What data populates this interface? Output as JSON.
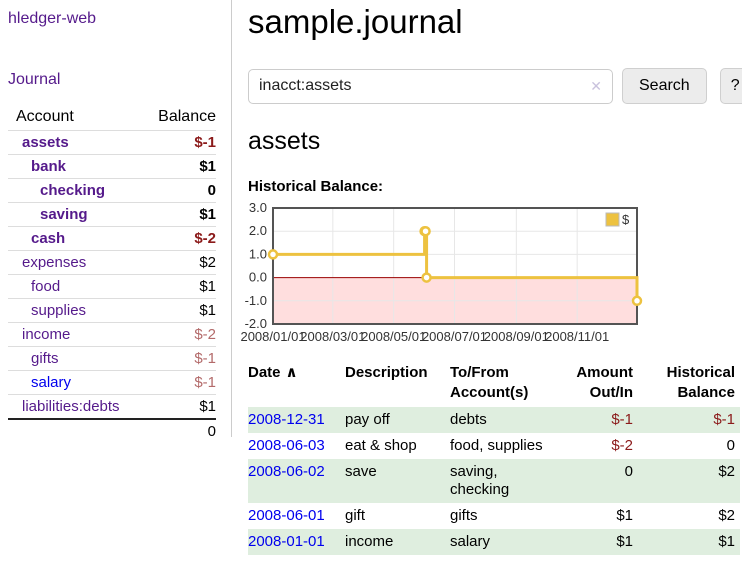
{
  "app": {
    "brand": "hledger-web"
  },
  "colors": {
    "link_purple": "#551a8b",
    "link_blue": "#0000ee",
    "negative_dark": "#8b1a1a",
    "negative_faded": "#b36a6a",
    "row_green": "#dfeedf",
    "series_yellow": "#edc240",
    "chart_negative_fill": "#ffdede",
    "chart_zero_line": "#990000",
    "chart_border": "#545454"
  },
  "sidebar": {
    "journal_label": "Journal",
    "table_headers": {
      "account": "Account",
      "balance": "Balance"
    },
    "accounts": [
      {
        "name": "assets",
        "depth": 1,
        "bold": true,
        "balance": "$-1",
        "balance_style": "neg-dark",
        "balance_bold": true
      },
      {
        "name": "bank",
        "depth": 2,
        "bold": true,
        "balance": "$1",
        "balance_style": "normal",
        "balance_bold": true
      },
      {
        "name": "checking",
        "depth": 3,
        "bold": true,
        "balance": "0",
        "balance_style": "normal",
        "balance_bold": true
      },
      {
        "name": "saving",
        "depth": 3,
        "bold": true,
        "balance": "$1",
        "balance_style": "normal",
        "balance_bold": true
      },
      {
        "name": "cash",
        "depth": 2,
        "bold": true,
        "balance": "$-2",
        "balance_style": "neg-dark",
        "balance_bold": true
      },
      {
        "name": "expenses",
        "depth": 1,
        "bold": false,
        "balance": "$2",
        "balance_style": "normal",
        "balance_bold": false
      },
      {
        "name": "food",
        "depth": 2,
        "bold": false,
        "balance": "$1",
        "balance_style": "normal",
        "balance_bold": false
      },
      {
        "name": "supplies",
        "depth": 2,
        "bold": false,
        "balance": "$1",
        "balance_style": "normal",
        "balance_bold": false
      },
      {
        "name": "income",
        "depth": 1,
        "bold": false,
        "balance": "$-2",
        "balance_style": "neg-faded",
        "balance_bold": false
      },
      {
        "name": "gifts",
        "depth": 2,
        "bold": false,
        "balance": "$-1",
        "balance_style": "neg-faded",
        "balance_bold": false
      },
      {
        "name": "salary",
        "depth": 2,
        "bold": false,
        "balance": "$-1",
        "balance_style": "neg-faded",
        "balance_bold": false,
        "link_style": "blue"
      },
      {
        "name": "liabilities:debts",
        "depth": 1,
        "bold": false,
        "balance": "$1",
        "balance_style": "normal",
        "balance_bold": false
      }
    ],
    "total": "0"
  },
  "main": {
    "title": "sample.journal",
    "search": {
      "value": "inacct:assets",
      "placeholder": "",
      "clear_icon": "✕",
      "button_label": "Search",
      "help_label": "?"
    },
    "account_heading": "assets",
    "chart_title": "Historical Balance:"
  },
  "chart_data": {
    "type": "line",
    "step": true,
    "title": "Historical Balance:",
    "x_range": [
      "2008-01-01",
      "2008-12-31"
    ],
    "ylim": [
      -2,
      3
    ],
    "y_ticks": [
      3,
      2,
      1,
      0,
      -1,
      -2
    ],
    "x_ticks": [
      {
        "date": "2008-01-01",
        "label": "2008/01/01"
      },
      {
        "date": "2008-03-01",
        "label": "2008/03/01"
      },
      {
        "date": "2008-05-01",
        "label": "2008/05/01"
      },
      {
        "date": "2008-07-01",
        "label": "2008/07/01"
      },
      {
        "date": "2008-09-01",
        "label": "2008/09/01"
      },
      {
        "date": "2008-11-01",
        "label": "2008/11/01"
      }
    ],
    "grid": true,
    "negative_region_fill": true,
    "legend": {
      "label": "$",
      "position": "top-right"
    },
    "series": [
      {
        "name": "$",
        "color": "#edc240",
        "points": [
          [
            "2008-01-01",
            1
          ],
          [
            "2008-06-01",
            2
          ],
          [
            "2008-06-02",
            2
          ],
          [
            "2008-06-03",
            0
          ],
          [
            "2008-12-31",
            -1
          ]
        ]
      }
    ]
  },
  "register": {
    "headers": [
      {
        "label": "Date",
        "sort_indicator": "∧"
      },
      {
        "label": "Description"
      },
      {
        "label": "To/From Account(s)"
      },
      {
        "label": "Amount Out/In",
        "align": "right"
      },
      {
        "label": "Historical Balance",
        "align": "right"
      }
    ],
    "rows": [
      {
        "date": "2008-12-31",
        "description": "pay off",
        "accounts": "debts",
        "amount": "$-1",
        "amount_negative": true,
        "balance": "$-1",
        "balance_negative": true
      },
      {
        "date": "2008-06-03",
        "description": "eat & shop",
        "accounts": "food, supplies",
        "amount": "$-2",
        "amount_negative": true,
        "balance": "0",
        "balance_negative": false
      },
      {
        "date": "2008-06-02",
        "description": "save",
        "accounts": "saving, checking",
        "amount": "0",
        "amount_negative": false,
        "balance": "$2",
        "balance_negative": false
      },
      {
        "date": "2008-06-01",
        "description": "gift",
        "accounts": "gifts",
        "amount": "$1",
        "amount_negative": false,
        "balance": "$2",
        "balance_negative": false
      },
      {
        "date": "2008-01-01",
        "description": "income",
        "accounts": "salary",
        "amount": "$1",
        "amount_negative": false,
        "balance": "$1",
        "balance_negative": false
      }
    ]
  }
}
